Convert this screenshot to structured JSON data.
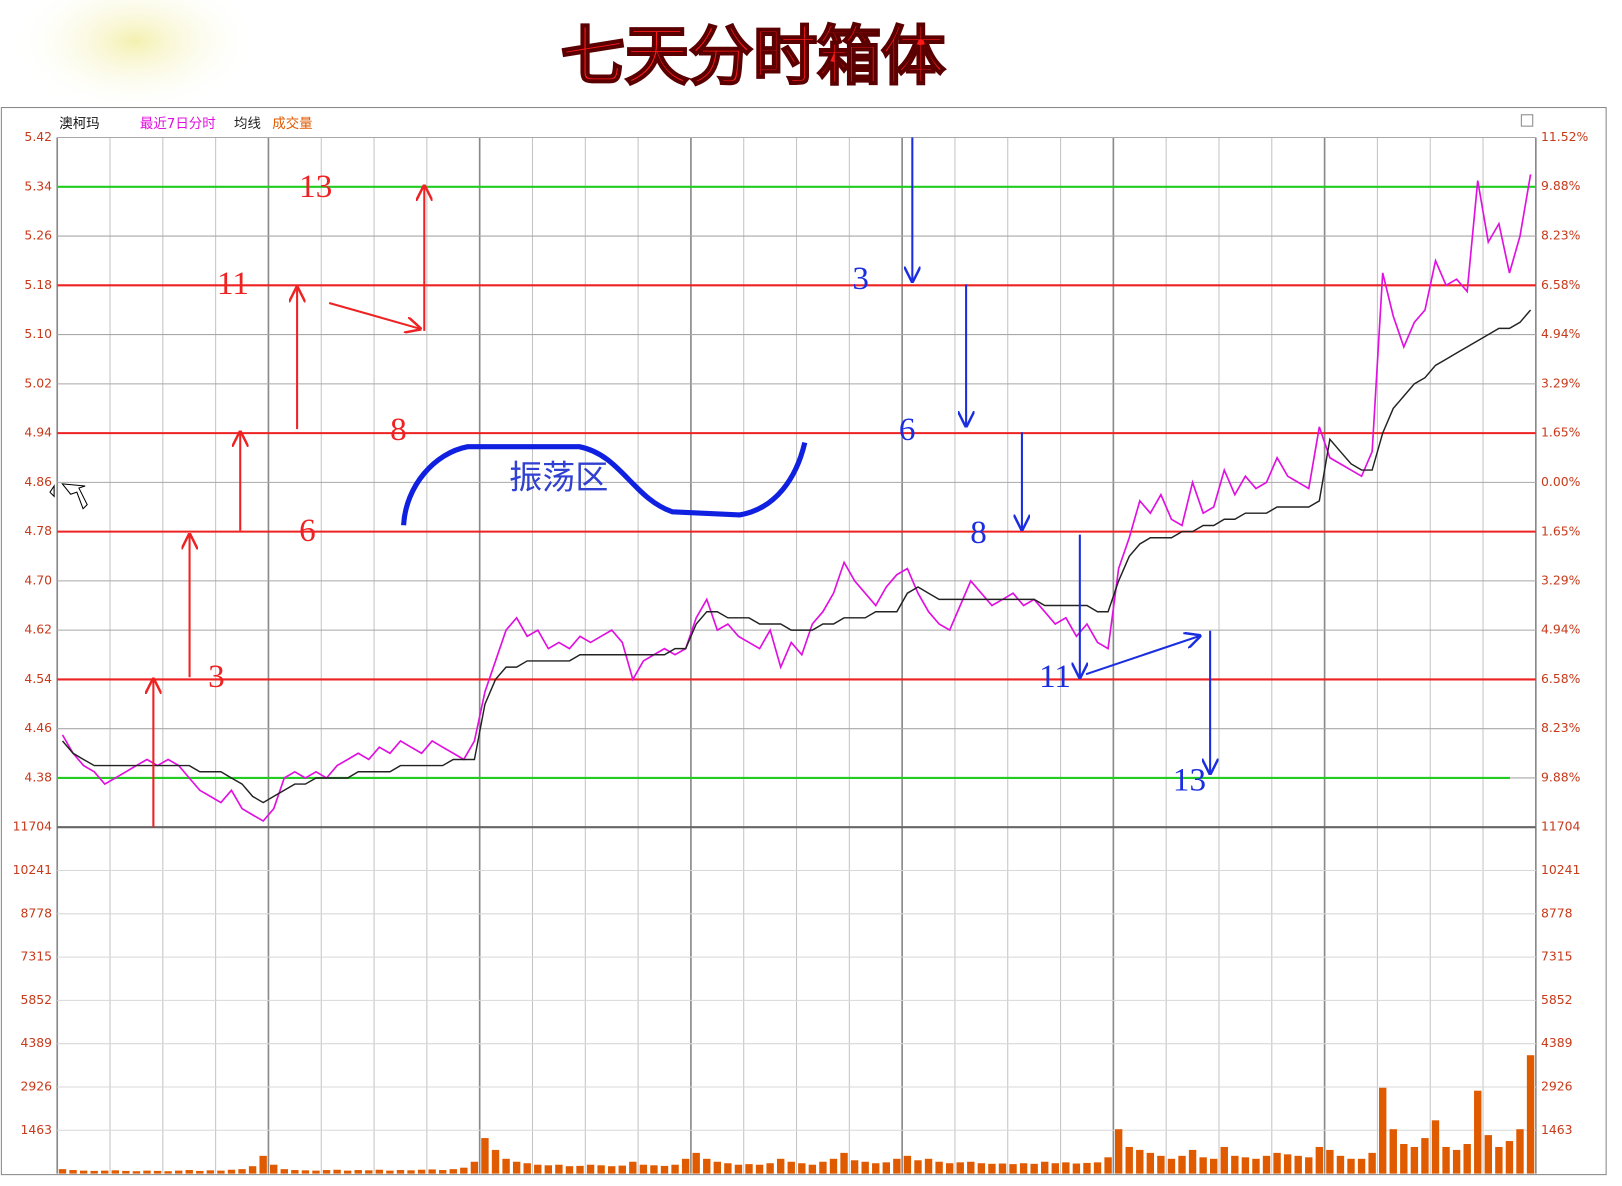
{
  "chart_data": {
    "type": "line",
    "title": "七天分时箱体",
    "stock_name": "澳柯玛",
    "ylim": [
      4.3,
      5.42
    ],
    "yticks": [
      5.42,
      5.34,
      5.26,
      5.18,
      {
        "value": 5.1,
        "label": "5.10"
      },
      5.02,
      4.94,
      4.86,
      4.78,
      {
        "value": 4.7,
        "label": "4.70"
      },
      4.62,
      4.54,
      4.46,
      4.38
    ],
    "y2lim": [
      -11.52,
      11.52
    ],
    "y2ticks": [
      {
        "value": 11.52,
        "label": "11.52%"
      },
      {
        "value": 9.88,
        "label": "9.88%"
      },
      {
        "value": 8.23,
        "label": "8.23%"
      },
      {
        "value": 6.58,
        "label": "6.58%"
      },
      {
        "value": 4.94,
        "label": "4.94%"
      },
      {
        "value": 3.29,
        "label": "3.29%"
      },
      {
        "value": 1.65,
        "label": "1.65%"
      },
      {
        "value": 0,
        "label": "0.00%"
      },
      {
        "value": -1.65,
        "label": "1.65%"
      },
      {
        "value": -3.29,
        "label": "3.29%"
      },
      {
        "value": -4.94,
        "label": "4.94%"
      },
      {
        "value": -6.58,
        "label": "6.58%"
      },
      {
        "value": -8.23,
        "label": "8.23%"
      },
      {
        "value": -9.88,
        "label": "9.88%"
      }
    ],
    "grid": true,
    "series": [
      {
        "name": "最近7日分时",
        "color": "#e010e0",
        "values": [
          4.45,
          4.42,
          4.4,
          4.39,
          4.37,
          4.38,
          4.39,
          4.4,
          4.41,
          4.4,
          4.41,
          4.4,
          4.38,
          4.36,
          4.35,
          4.34,
          4.36,
          4.33,
          4.32,
          4.31,
          4.33,
          4.38,
          4.39,
          4.38,
          4.39,
          4.38,
          4.4,
          4.41,
          4.42,
          4.41,
          4.43,
          4.42,
          4.44,
          4.43,
          4.42,
          4.44,
          4.43,
          4.42,
          4.41,
          4.44,
          4.52,
          4.57,
          4.62,
          4.64,
          4.61,
          4.62,
          4.59,
          4.6,
          4.59,
          4.61,
          4.6,
          4.61,
          4.62,
          4.6,
          4.54,
          4.57,
          4.58,
          4.59,
          4.58,
          4.59,
          4.64,
          4.67,
          4.62,
          4.63,
          4.61,
          4.6,
          4.59,
          4.62,
          4.56,
          4.6,
          4.58,
          4.63,
          4.65,
          4.68,
          4.73,
          4.7,
          4.68,
          4.66,
          4.69,
          4.71,
          4.72,
          4.68,
          4.65,
          4.63,
          4.62,
          4.66,
          4.7,
          4.68,
          4.66,
          4.67,
          4.68,
          4.66,
          4.67,
          4.65,
          4.63,
          4.64,
          4.61,
          4.63,
          4.6,
          4.59,
          4.72,
          4.77,
          4.83,
          4.81,
          4.84,
          4.8,
          4.79,
          4.86,
          4.81,
          4.82,
          4.88,
          4.84,
          4.87,
          4.85,
          4.86,
          4.9,
          4.87,
          4.86,
          4.85,
          4.95,
          4.9,
          4.89,
          4.88,
          4.87,
          4.91,
          5.2,
          5.13,
          5.08,
          5.12,
          5.14,
          5.22,
          5.18,
          5.19,
          5.17,
          5.35,
          5.25,
          5.28,
          5.2,
          5.26,
          5.36
        ]
      },
      {
        "name": "均线",
        "color": "#222222",
        "values": [
          4.44,
          4.42,
          4.41,
          4.4,
          4.4,
          4.4,
          4.4,
          4.4,
          4.4,
          4.4,
          4.4,
          4.4,
          4.4,
          4.39,
          4.39,
          4.39,
          4.38,
          4.37,
          4.35,
          4.34,
          4.35,
          4.36,
          4.37,
          4.37,
          4.38,
          4.38,
          4.38,
          4.38,
          4.39,
          4.39,
          4.39,
          4.39,
          4.4,
          4.4,
          4.4,
          4.4,
          4.4,
          4.41,
          4.41,
          4.41,
          4.5,
          4.54,
          4.56,
          4.56,
          4.57,
          4.57,
          4.57,
          4.57,
          4.57,
          4.58,
          4.58,
          4.58,
          4.58,
          4.58,
          4.58,
          4.58,
          4.58,
          4.58,
          4.59,
          4.59,
          4.63,
          4.65,
          4.65,
          4.64,
          4.64,
          4.64,
          4.63,
          4.63,
          4.63,
          4.62,
          4.62,
          4.62,
          4.63,
          4.63,
          4.64,
          4.64,
          4.64,
          4.65,
          4.65,
          4.65,
          4.68,
          4.69,
          4.68,
          4.67,
          4.67,
          4.67,
          4.67,
          4.67,
          4.67,
          4.67,
          4.67,
          4.67,
          4.67,
          4.66,
          4.66,
          4.66,
          4.66,
          4.66,
          4.65,
          4.65,
          4.7,
          4.74,
          4.76,
          4.77,
          4.77,
          4.77,
          4.78,
          4.78,
          4.79,
          4.79,
          4.8,
          4.8,
          4.81,
          4.81,
          4.81,
          4.82,
          4.82,
          4.82,
          4.82,
          4.83,
          4.93,
          4.91,
          4.89,
          4.88,
          4.88,
          4.94,
          4.98,
          5.0,
          5.02,
          5.03,
          5.05,
          5.06,
          5.07,
          5.08,
          5.09,
          5.1,
          5.11,
          5.11,
          5.12,
          5.14
        ]
      }
    ],
    "volume": {
      "name": "成交量",
      "color": "#e05a00",
      "ylim": [
        0,
        11704
      ],
      "yticks": [
        11704,
        10241,
        8778,
        7315,
        5852,
        4389,
        2926,
        1463
      ],
      "values": [
        150,
        120,
        100,
        90,
        100,
        110,
        90,
        80,
        100,
        90,
        80,
        100,
        120,
        90,
        110,
        100,
        130,
        150,
        250,
        600,
        300,
        150,
        120,
        110,
        100,
        120,
        130,
        100,
        120,
        110,
        130,
        100,
        120,
        110,
        130,
        140,
        120,
        150,
        200,
        400,
        1200,
        800,
        500,
        400,
        350,
        300,
        280,
        300,
        250,
        260,
        300,
        280,
        250,
        270,
        400,
        300,
        280,
        260,
        300,
        500,
        700,
        500,
        400,
        350,
        300,
        320,
        300,
        350,
        500,
        400,
        350,
        300,
        400,
        500,
        700,
        450,
        400,
        350,
        380,
        500,
        600,
        450,
        500,
        400,
        350,
        380,
        400,
        350,
        330,
        340,
        320,
        350,
        330,
        400,
        350,
        380,
        340,
        360,
        380,
        550,
        1500,
        900,
        800,
        700,
        600,
        500,
        600,
        800,
        550,
        500,
        900,
        600,
        550,
        500,
        600,
        700,
        650,
        600,
        550,
        900,
        800,
        600,
        500,
        500,
        700,
        2900,
        1500,
        1000,
        900,
        1200,
        1800,
        900,
        800,
        1000,
        2800,
        1300,
        900,
        1100,
        1500,
        4000
      ]
    },
    "levels": [
      {
        "value": 5.34,
        "color": "#22cc22"
      },
      {
        "value": 5.18,
        "color": "#ee2222"
      },
      {
        "value": 4.94,
        "color": "#ee2222"
      },
      {
        "value": 4.78,
        "color": "#ee2222"
      },
      {
        "value": 4.54,
        "color": "#ee2222"
      },
      {
        "value": 4.38,
        "color": "#22cc22"
      }
    ],
    "annotations": {
      "red": [
        "13",
        "11",
        "8",
        "6",
        "3"
      ],
      "blue": [
        "3",
        "6",
        "8",
        "11",
        "13"
      ],
      "zone": "振荡区"
    }
  }
}
